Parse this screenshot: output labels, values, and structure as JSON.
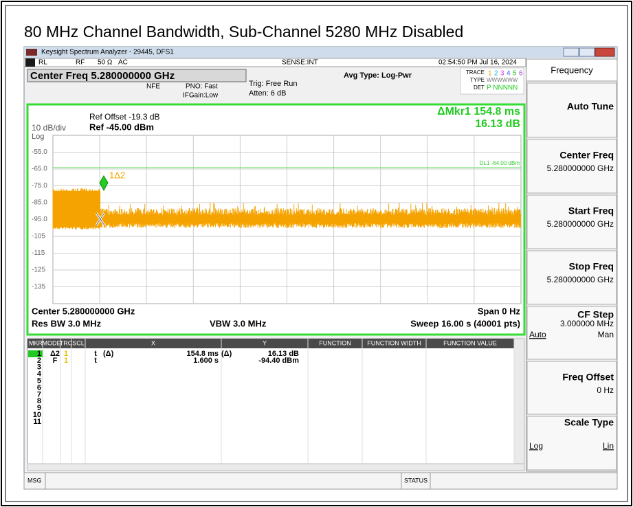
{
  "document_title": "80 MHz Channel Bandwidth, Sub-Channel 5280 MHz Disabled",
  "window": {
    "title": "Keysight Spectrum Analyzer - 29445, DFS1",
    "status": [
      "RL",
      "RF",
      "50 Ω",
      "AC",
      "SENSE:INT",
      "02:54:50 PM Jul 16, 2024"
    ]
  },
  "settings": {
    "center_freq": "Center Freq 5.280000000 GHz",
    "nfe": "NFE",
    "pno": "PNO: Fast",
    "ifgain": "IFGain:Low",
    "trig": "Trig: Free Run",
    "atten": "Atten: 6 dB",
    "avg_type": "Avg Type: Log-Pwr",
    "trace_label": "TRACE",
    "trace_numbers": [
      "1",
      "2",
      "3",
      "4",
      "5",
      "6"
    ],
    "type_label": "TYPE",
    "type_value": "WWWWWW",
    "det_label": "DET",
    "det_value": "P NNNNN"
  },
  "display": {
    "ref_offset": "Ref Offset -19.3 dB",
    "ref_level": "Ref -45.00 dBm",
    "scale": "10 dB/div",
    "scale_type": "Log",
    "delta_marker": "ΔMkr1 154.8 ms",
    "delta_value": "16.13 dB",
    "y_labels": [
      "-55.0",
      "-65.0",
      "-75.0",
      "-85.0",
      "-95.0",
      "-105",
      "-115",
      "-125",
      "-135"
    ],
    "display_line": "DL1 -64.00 dBm",
    "marker_label": "1Δ2",
    "center": "Center 5.280000000 GHz",
    "span": "Span 0 Hz",
    "res_bw": "Res BW 3.0 MHz",
    "vbw": "VBW 3.0 MHz",
    "sweep": "Sweep  16.00 s (40001 pts)"
  },
  "marker_table": {
    "headers": [
      "MKR",
      "MODE",
      "TRC",
      "SCL",
      "X",
      "Y",
      "FUNCTION",
      "FUNCTION WIDTH",
      "FUNCTION VALUE"
    ],
    "rows": [
      {
        "mkr": "1",
        "mode": "Δ2",
        "trc": "1",
        "scl": "t",
        "x_func": "(Δ)",
        "x": "154.8 ms",
        "y_func": "(Δ)",
        "y": "16.13 dB"
      },
      {
        "mkr": "2",
        "mode": "F",
        "trc": "1",
        "scl": "t",
        "x": "1.600 s",
        "y": "-94.40 dBm"
      },
      {
        "mkr": "3"
      },
      {
        "mkr": "4"
      },
      {
        "mkr": "5"
      },
      {
        "mkr": "6"
      },
      {
        "mkr": "7"
      },
      {
        "mkr": "8"
      },
      {
        "mkr": "9"
      },
      {
        "mkr": "10"
      },
      {
        "mkr": "11"
      }
    ]
  },
  "softkeys": {
    "menu": "Frequency",
    "keys": [
      {
        "label": "Auto Tune"
      },
      {
        "label": "Center Freq",
        "value": "5.280000000 GHz"
      },
      {
        "label": "Start Freq",
        "value": "5.280000000 GHz"
      },
      {
        "label": "Stop Freq",
        "value": "5.280000000 GHz"
      },
      {
        "label": "CF Step",
        "value": "3.000000 MHz",
        "options": [
          "Auto",
          "Man"
        ]
      },
      {
        "label": "Freq Offset",
        "value": "0 Hz"
      },
      {
        "label": "Scale Type",
        "options": [
          "Log",
          "Lin"
        ]
      }
    ]
  },
  "status_bar": {
    "msg": "MSG",
    "status": "STATUS"
  }
}
